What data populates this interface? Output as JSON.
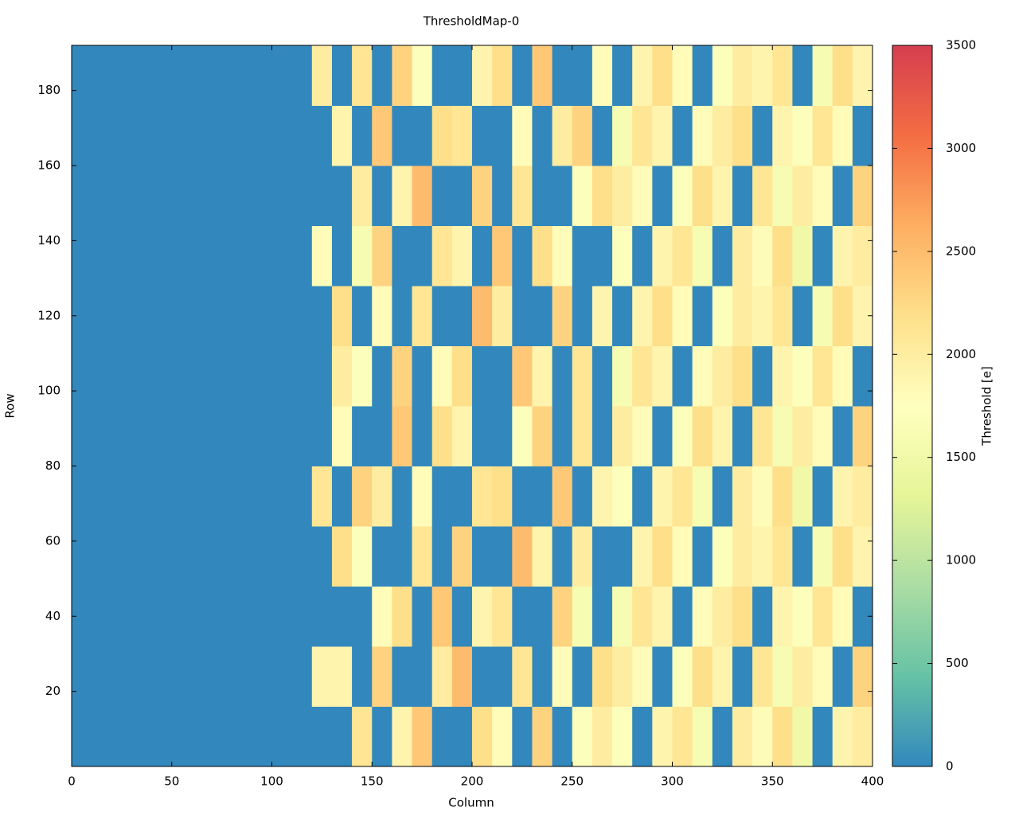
{
  "chart_data": {
    "type": "heatmap",
    "title": "ThresholdMap-0",
    "x_label": "Column",
    "y_label": "Row",
    "colorbar_label": "Threshold [e]",
    "xlim": [
      0,
      400
    ],
    "ylim": [
      0,
      192
    ],
    "zlim": [
      0,
      3500
    ],
    "xticks": [
      0,
      50,
      100,
      150,
      200,
      250,
      300,
      350,
      400
    ],
    "yticks": [
      20,
      40,
      60,
      80,
      100,
      120,
      140,
      160,
      180
    ],
    "zticks": [
      0,
      500,
      1000,
      1500,
      2000,
      2500,
      3000,
      3500
    ],
    "colormap": [
      "#3288bd",
      "#66c2a5",
      "#abdda4",
      "#e6f598",
      "#ffffbf",
      "#fee08b",
      "#fdae61",
      "#f46d43",
      "#d53e4f"
    ],
    "z": [
      [
        0,
        0,
        0,
        0,
        0,
        0,
        0,
        0,
        0,
        0,
        0,
        0,
        0,
        0,
        2100,
        0,
        1900,
        2400,
        0,
        0,
        2200,
        1800,
        0,
        2300,
        0,
        1700,
        2000,
        1700,
        0,
        1900,
        2100,
        1600,
        0,
        2000,
        1800,
        2200,
        1500,
        0,
        1900,
        2000
      ],
      [
        0,
        0,
        0,
        0,
        0,
        0,
        0,
        0,
        0,
        0,
        0,
        0,
        1900,
        1900,
        0,
        2300,
        0,
        0,
        2000,
        2500,
        0,
        0,
        2100,
        0,
        1800,
        0,
        2200,
        2000,
        1800,
        0,
        1700,
        2200,
        1900,
        0,
        2100,
        1600,
        2000,
        1800,
        0,
        2300
      ],
      [
        0,
        0,
        0,
        0,
        0,
        0,
        0,
        0,
        0,
        0,
        0,
        0,
        0,
        0,
        0,
        1800,
        2200,
        0,
        2400,
        0,
        1900,
        2100,
        0,
        0,
        2300,
        1600,
        0,
        1600,
        2100,
        1900,
        0,
        1800,
        2000,
        2200,
        0,
        1900,
        1700,
        2100,
        1800,
        0
      ],
      [
        0,
        0,
        0,
        0,
        0,
        0,
        0,
        0,
        0,
        0,
        0,
        0,
        0,
        2200,
        1700,
        0,
        0,
        2100,
        0,
        2300,
        0,
        0,
        2500,
        1900,
        0,
        2000,
        0,
        0,
        1900,
        2200,
        1800,
        0,
        1700,
        2000,
        1900,
        2100,
        0,
        1600,
        2200,
        1900
      ],
      [
        0,
        0,
        0,
        0,
        0,
        0,
        0,
        0,
        0,
        0,
        0,
        0,
        2100,
        0,
        2300,
        2000,
        0,
        1800,
        0,
        0,
        2100,
        2200,
        0,
        0,
        2400,
        0,
        1900,
        1700,
        0,
        1900,
        2100,
        1600,
        0,
        2000,
        1800,
        2200,
        1500,
        0,
        1900,
        2000
      ],
      [
        0,
        0,
        0,
        0,
        0,
        0,
        0,
        0,
        0,
        0,
        0,
        0,
        0,
        1800,
        0,
        0,
        2400,
        0,
        2200,
        1900,
        0,
        0,
        1700,
        2300,
        0,
        2100,
        0,
        2000,
        1800,
        0,
        1700,
        2200,
        1900,
        0,
        2100,
        1600,
        2000,
        1800,
        0,
        2300
      ],
      [
        0,
        0,
        0,
        0,
        0,
        0,
        0,
        0,
        0,
        0,
        0,
        0,
        0,
        2000,
        1700,
        0,
        2300,
        0,
        1800,
        2200,
        0,
        0,
        2400,
        1900,
        0,
        2100,
        0,
        1600,
        2100,
        1900,
        0,
        1800,
        2000,
        2200,
        0,
        1900,
        1700,
        2100,
        1800,
        0
      ],
      [
        0,
        0,
        0,
        0,
        0,
        0,
        0,
        0,
        0,
        0,
        0,
        0,
        0,
        2200,
        0,
        1800,
        0,
        2100,
        0,
        0,
        2500,
        2000,
        0,
        0,
        2300,
        0,
        1900,
        0,
        1900,
        2200,
        1800,
        0,
        1700,
        2000,
        1900,
        2100,
        0,
        1600,
        2200,
        1900
      ],
      [
        0,
        0,
        0,
        0,
        0,
        0,
        0,
        0,
        0,
        0,
        0,
        0,
        1800,
        0,
        1600,
        2300,
        0,
        0,
        2100,
        1900,
        0,
        2400,
        0,
        2200,
        1800,
        0,
        0,
        1700,
        0,
        1900,
        2100,
        1600,
        0,
        2000,
        1800,
        2200,
        1500,
        0,
        1900,
        2000
      ],
      [
        0,
        0,
        0,
        0,
        0,
        0,
        0,
        0,
        0,
        0,
        0,
        0,
        0,
        0,
        2000,
        0,
        1900,
        2500,
        0,
        0,
        2300,
        0,
        2100,
        0,
        0,
        1700,
        2200,
        2000,
        1800,
        0,
        1700,
        2200,
        1900,
        0,
        2100,
        1600,
        2000,
        1800,
        0,
        2300
      ],
      [
        0,
        0,
        0,
        0,
        0,
        0,
        0,
        0,
        0,
        0,
        0,
        0,
        0,
        1900,
        0,
        2400,
        0,
        0,
        2200,
        2100,
        0,
        0,
        1800,
        0,
        2000,
        2300,
        0,
        1600,
        2100,
        1900,
        0,
        1800,
        2000,
        2200,
        0,
        1900,
        1700,
        2100,
        1800,
        0
      ],
      [
        0,
        0,
        0,
        0,
        0,
        0,
        0,
        0,
        0,
        0,
        0,
        0,
        2000,
        0,
        2100,
        0,
        2300,
        1700,
        0,
        0,
        1900,
        2200,
        0,
        2400,
        0,
        0,
        1800,
        0,
        1900,
        2200,
        1800,
        0,
        1700,
        2000,
        1900,
        2100,
        0,
        1600,
        2200,
        1900
      ]
    ]
  }
}
